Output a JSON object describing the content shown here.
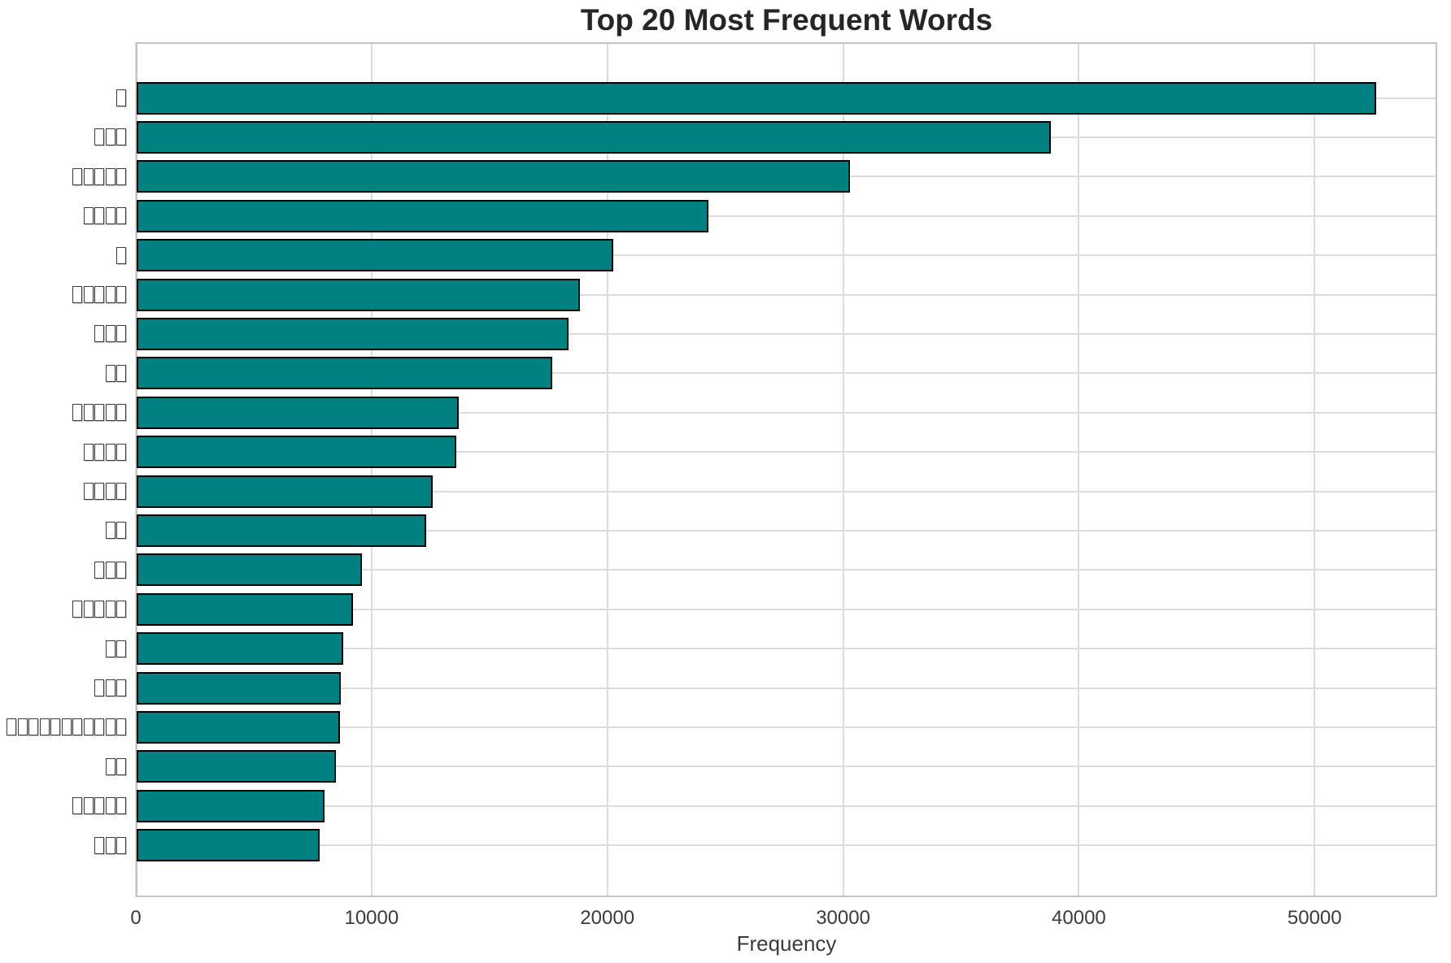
{
  "figure": {
    "title": "Top 20 Most Frequent Words",
    "xlabel": "Frequency"
  },
  "chart_data": {
    "type": "bar",
    "orientation": "horizontal",
    "title": "Top 20 Most Frequent Words",
    "xlabel": "Frequency",
    "ylabel": "",
    "categories": [
      "□",
      "□□□",
      "□□□□□",
      "□□□□",
      "□",
      "□□□□□",
      "□□□",
      "□□",
      "□□□□□",
      "□□□□",
      "□□□□",
      "□□",
      "□□□",
      "□□□□□",
      "□□",
      "□□□",
      "□□□□□□□□□□□",
      "□□",
      "□□□□□",
      "□□□"
    ],
    "category_glyph_note": "y labels are words shown as missing-glyph tofu boxes; counts per label below",
    "tofu_counts": [
      1,
      3,
      5,
      4,
      1,
      5,
      3,
      2,
      5,
      4,
      4,
      2,
      3,
      5,
      2,
      3,
      11,
      2,
      5,
      3
    ],
    "values": [
      52600,
      38800,
      30300,
      24300,
      20250,
      18850,
      18350,
      17650,
      13700,
      13600,
      12600,
      12300,
      9600,
      9200,
      8800,
      8700,
      8650,
      8500,
      8000,
      7800
    ],
    "xlim": [
      0,
      55200
    ],
    "xticks": [
      0,
      10000,
      20000,
      30000,
      40000,
      50000
    ],
    "grid": true,
    "legend": false,
    "colors": {
      "bar_fill": "#008080",
      "bar_edge": "#000000",
      "grid": "#dcdcdc",
      "spine": "#c3c3c3",
      "tick_text": "#3b3b3b",
      "title_text": "#262626",
      "background": "#ffffff"
    }
  }
}
